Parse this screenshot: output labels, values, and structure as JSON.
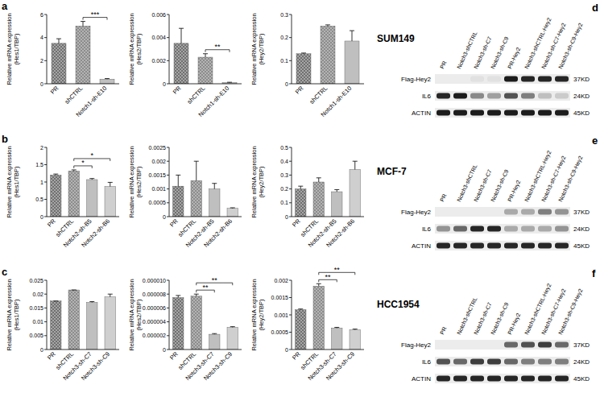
{
  "row_labels": [
    "a",
    "b",
    "c"
  ],
  "chart_data": [
    {
      "type": "bar",
      "y_label": "Relative mRNA expression (Hes1/TBP)",
      "categories": [
        "PR",
        "shCTRL",
        "Notch1-sh-E10"
      ],
      "values": [
        3.5,
        5.0,
        0.4
      ],
      "errors": [
        0.4,
        0.4,
        0.05
      ],
      "colors": [
        "#707070",
        "#8c8c8c",
        "#b0b0b0"
      ],
      "ylim": [
        0,
        6
      ],
      "yticks": [
        0,
        2,
        4,
        6
      ],
      "annotations": [
        {
          "text": "***",
          "between": [
            1,
            2
          ]
        }
      ]
    },
    {
      "type": "bar",
      "y_label": "Relative mRNA expression (Hes2/TBP)",
      "categories": [
        "PR",
        "shCTRL",
        "Notch1-sh-E10"
      ],
      "values": [
        0.0035,
        0.0023,
        0.0001
      ],
      "errors": [
        0.0013,
        0.0003,
        3e-05
      ],
      "colors": [
        "#707070",
        "#8c8c8c",
        "#b0b0b0"
      ],
      "ylim": [
        0,
        0.006
      ],
      "yticks": [
        0,
        0.002,
        0.004,
        0.006
      ],
      "annotations": [
        {
          "text": "**",
          "between": [
            1,
            2
          ]
        }
      ]
    },
    {
      "type": "bar",
      "y_label": "Relative mRNA expression (Hey2/TBP)",
      "categories": [
        "PR",
        "shCTRL",
        "Notch1-sh-E10"
      ],
      "values": [
        0.13,
        0.25,
        0.185
      ],
      "errors": [
        0.003,
        0.005,
        0.045
      ],
      "colors": [
        "#707070",
        "#8c8c8c",
        "#b0b0b0"
      ],
      "ylim": [
        0,
        0.3
      ],
      "yticks": [
        0,
        0.1,
        0.2,
        0.3
      ],
      "annotations": []
    },
    {
      "type": "bar",
      "y_label": "Relative mRNA expression (Hes1/TBP)",
      "categories": [
        "PR",
        "shCTRL",
        "Notch2-sh-B5",
        "Notch2-sh-B6"
      ],
      "values": [
        1.2,
        1.32,
        1.07,
        0.87
      ],
      "errors": [
        0.03,
        0.03,
        0.03,
        0.12
      ],
      "colors": [
        "#707070",
        "#8c8c8c",
        "#b0b0b0",
        "#c4c4c4"
      ],
      "ylim": [
        0,
        2
      ],
      "yticks": [
        0,
        0.5,
        1,
        1.5,
        2
      ],
      "annotations": [
        {
          "text": "*",
          "between": [
            1,
            2
          ]
        },
        {
          "text": "*",
          "between": [
            1,
            3
          ]
        }
      ]
    },
    {
      "type": "bar",
      "y_label": "Relative mRNA expression (Hes2/TBP)",
      "categories": [
        "PR",
        "shCTRL",
        "Notch2-sh-B5",
        "Notch2-sh-B6"
      ],
      "values": [
        0.0011,
        0.0013,
        0.001,
        0.0003
      ],
      "errors": [
        0.0004,
        0.0007,
        0.0002,
        2e-05
      ],
      "colors": [
        "#707070",
        "#8c8c8c",
        "#b0b0b0",
        "#c4c4c4"
      ],
      "ylim": [
        0,
        0.0025
      ],
      "yticks": [
        0,
        0.0005,
        0.001,
        0.0015,
        0.002,
        0.0025
      ],
      "annotations": []
    },
    {
      "type": "bar",
      "y_label": "Relative mRNA expression (Hey2/TBP)",
      "categories": [
        "PR",
        "shCTRL",
        "Notch2-sh-B5",
        "Notch2-sh-B6"
      ],
      "values": [
        0.2,
        0.25,
        0.18,
        0.34
      ],
      "errors": [
        0.02,
        0.03,
        0.015,
        0.06
      ],
      "colors": [
        "#707070",
        "#8c8c8c",
        "#b0b0b0",
        "#c4c4c4"
      ],
      "ylim": [
        0,
        0.5
      ],
      "yticks": [
        0,
        0.1,
        0.2,
        0.3,
        0.4,
        0.5
      ],
      "annotations": []
    },
    {
      "type": "bar",
      "y_label": "Relative mRNA expression (Hes1/TBP)",
      "categories": [
        "PR",
        "shCTRL",
        "Notch3-sh-C7",
        "Notch3-sh-C9"
      ],
      "values": [
        0.0175,
        0.0215,
        0.017,
        0.019
      ],
      "errors": [
        0,
        0,
        0.0003,
        0.001
      ],
      "colors": [
        "#707070",
        "#8c8c8c",
        "#b0b0b0",
        "#c4c4c4"
      ],
      "ylim": [
        0,
        0.025
      ],
      "yticks": [
        0,
        0.005,
        0.01,
        0.015,
        0.02,
        0.025
      ],
      "annotations": []
    },
    {
      "type": "bar",
      "y_label": "Relative mRNA expression (Hes2/TBP)",
      "categories": [
        "PR",
        "shCTRL",
        "Notch3-sh-C7",
        "Notch3-sh-C9"
      ],
      "values": [
        7.5e-06,
        7.7e-06,
        2.2e-06,
        3.2e-06
      ],
      "errors": [
        3e-07,
        3e-07,
        1e-07,
        1e-07
      ],
      "colors": [
        "#707070",
        "#8c8c8c",
        "#b0b0b0",
        "#c4c4c4"
      ],
      "ylim": [
        0,
        1e-05
      ],
      "yticks": [
        0,
        2e-06,
        4e-06,
        6e-06,
        8e-06,
        {
          "value": 1e-05,
          "label": "0.000010"
        }
      ],
      "annotations": [
        {
          "text": "**",
          "between": [
            1,
            2
          ]
        },
        {
          "text": "**",
          "between": [
            1,
            3
          ]
        }
      ]
    },
    {
      "type": "bar",
      "y_label": "Relative mRNA expression (Hey2/TBP)",
      "categories": [
        "PR",
        "shCTRL",
        "Notch3-sh-C7",
        "Notch3-sh-C9"
      ],
      "values": [
        0.00115,
        0.00183,
        0.00062,
        0.00057
      ],
      "errors": [
        2e-05,
        7e-05,
        2e-05,
        2e-05
      ],
      "colors": [
        "#707070",
        "#8c8c8c",
        "#b0b0b0",
        "#c4c4c4"
      ],
      "ylim": [
        0,
        0.002
      ],
      "yticks": [
        0,
        0.0005,
        0.001,
        0.0015,
        0.002
      ],
      "annotations": [
        {
          "text": "**",
          "between": [
            1,
            2
          ]
        },
        {
          "text": "**",
          "between": [
            1,
            3
          ]
        }
      ]
    }
  ],
  "blots": [
    {
      "panel": "d",
      "cell_line": "SUM149",
      "lanes": [
        "PR",
        "Notch3-shCTRL",
        "Notch3-sh-C7",
        "Notch3-sh-C9",
        "PR-Hey2",
        "Notch3-shCTRL-Hey2",
        "Notch3-sh-C7-Hey2",
        "Notch3-sh-C9-Hey2"
      ],
      "rows": [
        {
          "label": "Flag-Hey2",
          "size": "37KD",
          "bands": [
            0,
            0,
            0.05,
            0.05,
            0.95,
            0.9,
            0.9,
            0.9
          ]
        },
        {
          "label": "IL6",
          "size": "24KD",
          "bands": [
            0.9,
            0.95,
            0.45,
            0.35,
            0.7,
            0.5,
            0.2,
            0.15
          ]
        },
        {
          "label": "ACTIN",
          "size": "45KD",
          "bands": [
            0.95,
            0.95,
            0.95,
            0.95,
            0.95,
            0.95,
            0.95,
            0.95
          ]
        }
      ]
    },
    {
      "panel": "e",
      "cell_line": "MCF-7",
      "lanes": [
        "PR",
        "Notch3-shCTRL",
        "Notch3-sh-C7",
        "Notch3-sh-C9",
        "PR-Hey2",
        "Notch3-shCTRL-Hey2",
        "Notch3-sh-C7-Hey2",
        "Notch3-sh-C9-Hey2"
      ],
      "rows": [
        {
          "label": "Flag-Hey2",
          "size": "37KD",
          "bands": [
            0,
            0,
            0,
            0,
            0.3,
            0.3,
            0.5,
            0.4
          ]
        },
        {
          "label": "IL6",
          "size": "24KD",
          "bands": [
            0.4,
            0.6,
            0.9,
            0.9,
            0.3,
            0.3,
            0.3,
            0.4
          ]
        },
        {
          "label": "ACTIN",
          "size": "45KD",
          "bands": [
            0.9,
            0.9,
            0.9,
            0.9,
            0.9,
            0.9,
            0.9,
            0.9
          ]
        }
      ]
    },
    {
      "panel": "f",
      "cell_line": "HCC1954",
      "lanes": [
        "PR",
        "Notch3-shCTRL",
        "Notch3-sh-C7",
        "Notch3-sh-C9",
        "PR-Hey2",
        "Notch3-shCTRL-Hey2",
        "Notch3-sh-C7-Hey2",
        "Notch3-sh-C9-Hey2"
      ],
      "rows": [
        {
          "label": "Flag-Hey2",
          "size": "37KD",
          "bands": [
            0,
            0,
            0,
            0,
            0.6,
            0.7,
            0.8,
            0.6
          ]
        },
        {
          "label": "IL6",
          "size": "24KD",
          "bands": [
            0.7,
            0.6,
            0.8,
            0.8,
            0.6,
            0.5,
            0.5,
            0.5
          ]
        },
        {
          "label": "ACTIN",
          "size": "45KD",
          "bands": [
            0.9,
            0.9,
            0.9,
            0.9,
            0.9,
            0.9,
            0.9,
            0.9
          ]
        }
      ]
    }
  ]
}
